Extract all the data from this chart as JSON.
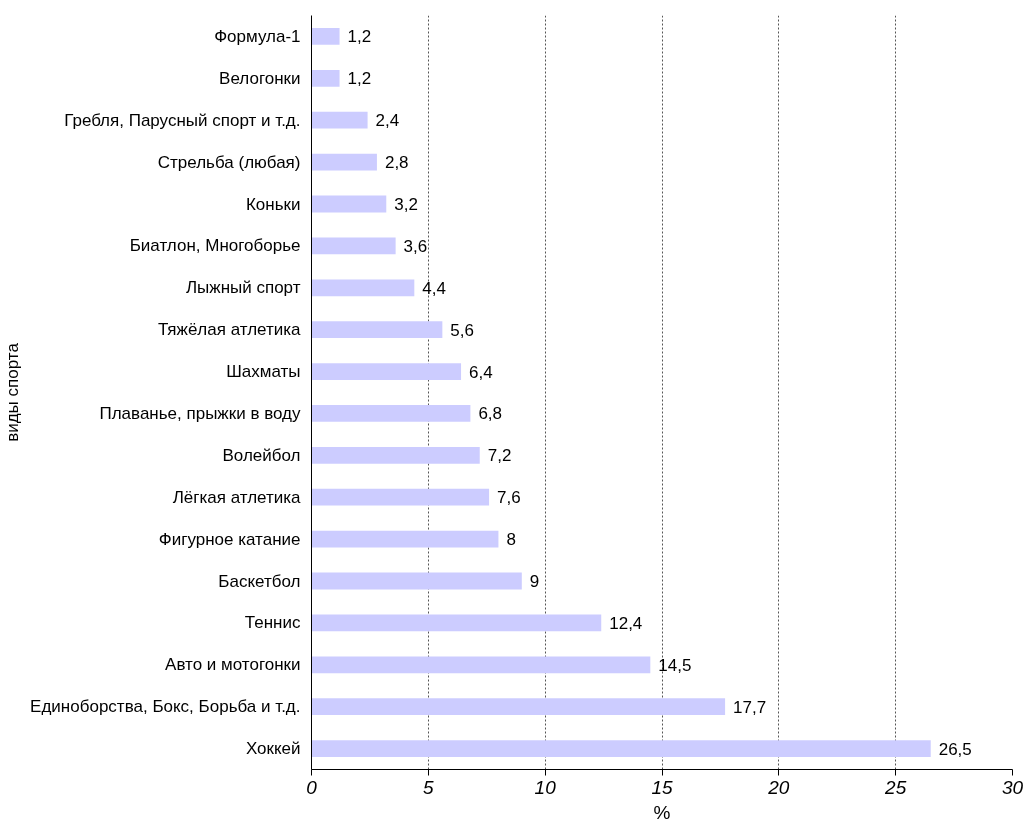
{
  "chart_data": {
    "type": "bar",
    "orientation": "horizontal",
    "xlabel": "%",
    "ylabel": "виды спорта",
    "categories": [
      "Формула-1",
      "Велогонки",
      "Гребля, Парусный спорт и т.д.",
      "Стрельба (любая)",
      "Коньки",
      "Биатлон, Многоборье",
      "Лыжный спорт",
      "Тяжёлая атлетика",
      "Шахматы",
      "Плаванье, прыжки в воду",
      "Волейбол",
      "Лёгкая атлетика",
      "Фигурное катание",
      "Баскетбол",
      "Теннис",
      "Авто и мотогонки",
      "Единоборства, Бокс, Борьба и т.д.",
      "Хоккей"
    ],
    "values": [
      1.2,
      1.2,
      2.4,
      2.8,
      3.2,
      3.6,
      4.4,
      5.6,
      6.4,
      6.8,
      7.2,
      7.6,
      8,
      9,
      12.4,
      14.5,
      17.7,
      26.5
    ],
    "value_labels": [
      "1,2",
      "1,2",
      "2,4",
      "2,8",
      "3,2",
      "3,6",
      "4,4",
      "5,6",
      "6,4",
      "6,8",
      "7,2",
      "7,6",
      "8",
      "9",
      "12,4",
      "14,5",
      "17,7",
      "26,5"
    ],
    "color": "#ccccff",
    "xlim": [
      0,
      30
    ],
    "xticks": [
      0,
      5,
      10,
      15,
      20,
      25,
      30
    ],
    "grid": "x"
  }
}
